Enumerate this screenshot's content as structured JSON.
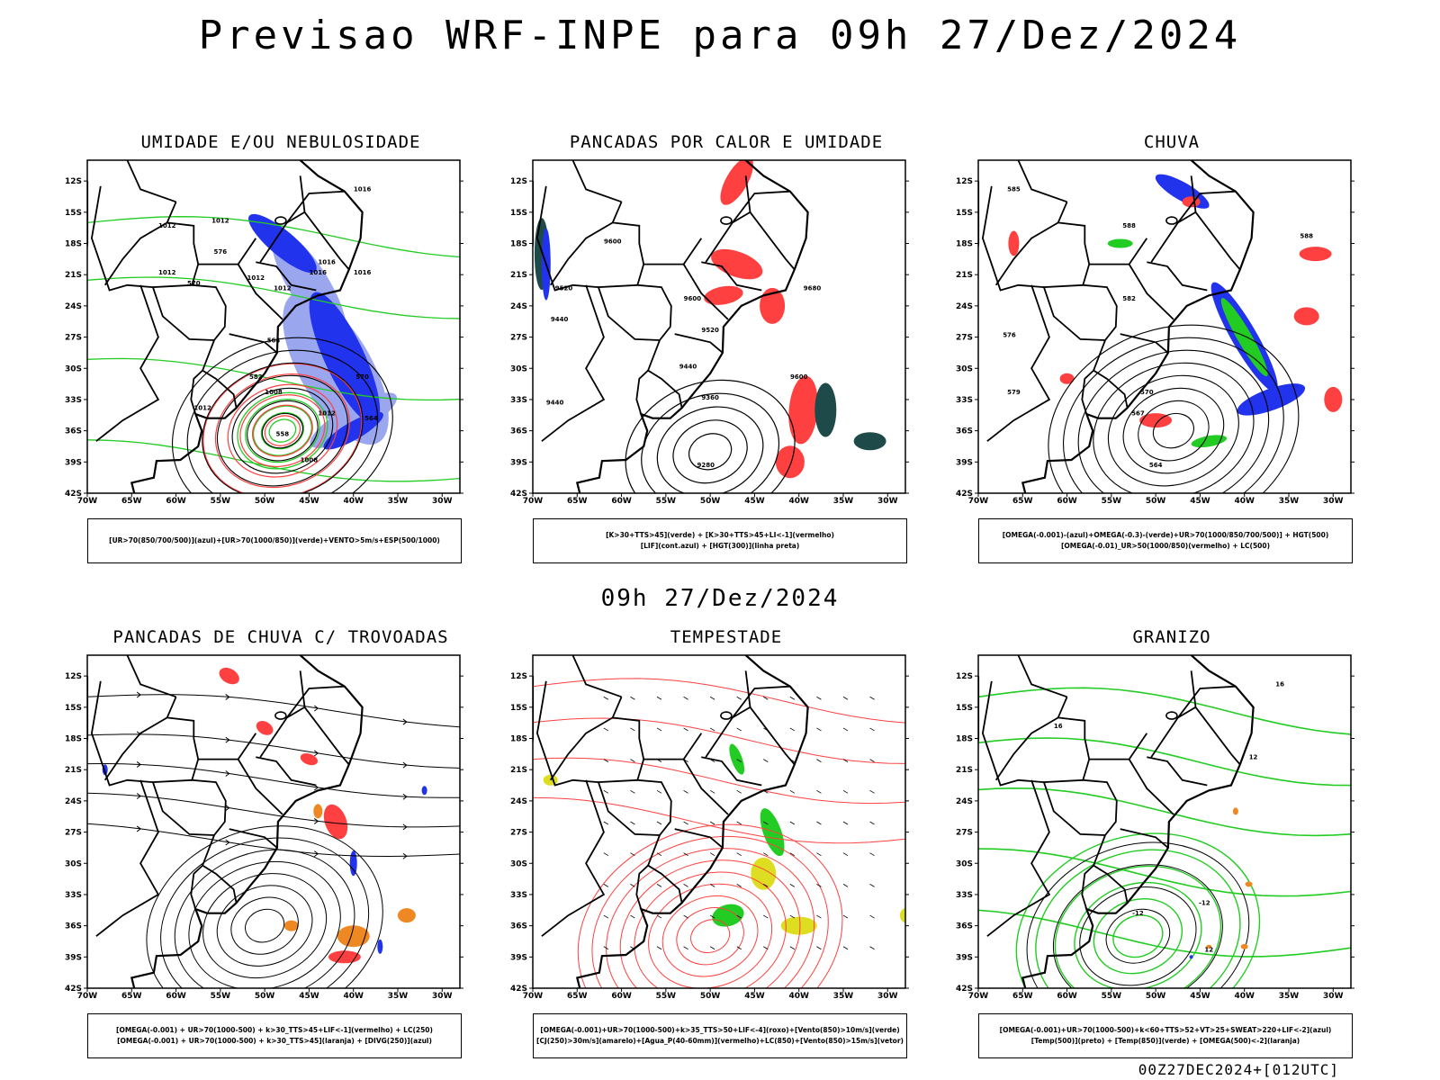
{
  "title": "Previsao WRF-INPE  para 09h 27/Dez/2024",
  "subtitle": "09h 27/Dez/2024",
  "footer": "00Z27DEC2024+[012UTC]",
  "lat_labels": [
    "12S",
    "15S",
    "18S",
    "21S",
    "24S",
    "27S",
    "30S",
    "33S",
    "36S",
    "39S",
    "42S"
  ],
  "lon_labels": [
    "70W",
    "65W",
    "60W",
    "55W",
    "50W",
    "45W",
    "40W",
    "35W",
    "30W"
  ],
  "colors": {
    "blue": "#2233ee",
    "light_blue": "#9aa6ee",
    "green": "#22cc22",
    "red": "#ff4040",
    "orange": "#ee8822",
    "yellow": "#dddd22",
    "dark_teal": "#1e4a4a",
    "contour": "#000000"
  },
  "panels": [
    {
      "title": "UMIDADE E/OU NEBULOSIDADE",
      "legend": [
        "[UR>70(850/700/500)](azul)+[UR>70(1000/850)](verde)+VENTO>5m/s+ESP(500/1000)"
      ],
      "contour_labels": [
        "1016",
        "1012",
        "1012",
        "1012",
        "1016",
        "1016",
        "1012",
        "1012",
        "1008",
        "1012",
        "1012",
        "1008",
        "1016",
        "570",
        "576",
        "570",
        "564",
        "558",
        "582",
        "564"
      ]
    },
    {
      "title": "PANCADAS POR CALOR E UMIDADE",
      "legend": [
        "[K>30+TTS>45](verde) + [K>30+TTS>45+LI<-1](vermelho)",
        "[LIF](cont.azul) + [HGT(300)](linha preta)"
      ],
      "contour_labels": [
        "9600",
        "9520",
        "9440",
        "9600",
        "9520",
        "9440",
        "9360",
        "9280",
        "9680",
        "9600",
        "9440"
      ]
    },
    {
      "title": "CHUVA",
      "legend": [
        "[OMEGA(-0.001)-(azul)+OMEGA(-0.3)-(verde)+UR>70(1000/850/700/500)] + HGT(500)",
        "[OMEGA(-0.01)_UR>50(1000/850)(vermelho) + LC(500)"
      ],
      "contour_labels": [
        "585",
        "588",
        "582",
        "576",
        "579",
        "570",
        "567",
        "564",
        "588"
      ]
    },
    {
      "title": "PANCADAS DE CHUVA C/ TROVOADAS",
      "legend": [
        "[OMEGA(-0.001) + UR>70(1000-500) + k>30_TTS>45+LIF<-1](vermelho) + LC(250)",
        "[OMEGA(-0.001) + UR>70(1000-500) + k>30_TTS>45](laranja) + [DIVG(250)](azul)"
      ],
      "contour_labels": []
    },
    {
      "title": "TEMPESTADE",
      "legend": [
        "[OMEGA(-0.001)+UR>70(1000-500)+k>35_TTS>50+LIF<-4](roxo)+[Vento(850)>10m/s](verde)",
        "[CJ(250)>30m/s](amarelo)+[Agua_P(40-60mm)](vermelho)+LC(850)+[Vento(850)>15m/s](vetor)"
      ],
      "contour_labels": []
    },
    {
      "title": "GRANIZO",
      "legend": [
        "[OMEGA(-0.001)+UR>70(1000-500)+k<60+TTS>52+VT>25+SWEAT>220+LIF<-2](azul)",
        "[Temp(500)](preto) + [Temp(850)](verde) + [OMEGA(500)<-2](laranja)"
      ],
      "contour_labels": [
        "-12",
        "12",
        "16",
        "16",
        "12",
        "-12"
      ]
    }
  ]
}
